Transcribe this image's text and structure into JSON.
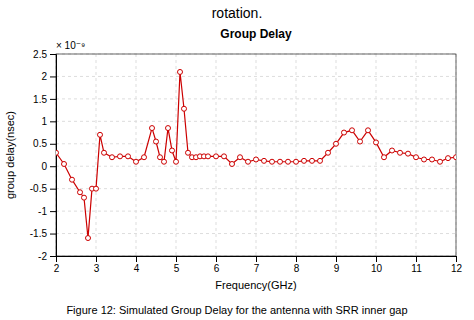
{
  "chart_data": {
    "type": "line",
    "title": "Group Delay",
    "subtitle": "rotation.",
    "caption": "Figure 12: Simulated Group Delay for the antenna with SRR inner gap",
    "annotations": [
      "× 10⁻⁹"
    ],
    "x_label": "Frequency(GHz)",
    "y_label": "group delay(nsec)",
    "x": [
      2.0,
      2.2,
      2.4,
      2.6,
      2.7,
      2.8,
      2.9,
      3.0,
      3.1,
      3.2,
      3.4,
      3.6,
      3.8,
      4.0,
      4.2,
      4.4,
      4.5,
      4.6,
      4.7,
      4.8,
      4.9,
      5.0,
      5.1,
      5.2,
      5.3,
      5.4,
      5.5,
      5.6,
      5.7,
      5.8,
      6.0,
      6.2,
      6.4,
      6.6,
      6.8,
      7.0,
      7.2,
      7.4,
      7.6,
      7.8,
      8.0,
      8.2,
      8.4,
      8.6,
      8.8,
      9.0,
      9.2,
      9.4,
      9.6,
      9.8,
      10.0,
      10.2,
      10.4,
      10.6,
      10.8,
      11.0,
      11.2,
      11.4,
      11.6,
      11.8,
      12.0
    ],
    "values": [
      0.3,
      0.05,
      -0.3,
      -0.58,
      -0.7,
      -1.6,
      -0.5,
      -0.5,
      0.7,
      0.3,
      0.2,
      0.22,
      0.22,
      0.1,
      0.2,
      0.85,
      0.55,
      0.2,
      0.1,
      0.85,
      0.35,
      0.1,
      2.1,
      1.28,
      0.3,
      0.2,
      0.2,
      0.22,
      0.22,
      0.22,
      0.22,
      0.22,
      0.05,
      0.2,
      0.1,
      0.15,
      0.12,
      0.1,
      0.1,
      0.1,
      0.1,
      0.12,
      0.12,
      0.12,
      0.3,
      0.5,
      0.75,
      0.8,
      0.55,
      0.8,
      0.53,
      0.2,
      0.35,
      0.3,
      0.28,
      0.2,
      0.15,
      0.15,
      0.1,
      0.18,
      0.2
    ],
    "color": "#cc0000",
    "marker": "circle",
    "xlim": [
      2,
      12
    ],
    "ylim": [
      -2.0,
      2.5
    ],
    "xticks": [
      2,
      3,
      4,
      5,
      6,
      7,
      8,
      9,
      10,
      11,
      12
    ],
    "yticks": [
      -2,
      -1.5,
      -1,
      -0.5,
      0,
      0.5,
      1,
      1.5,
      2,
      2.5
    ],
    "grid": true
  }
}
